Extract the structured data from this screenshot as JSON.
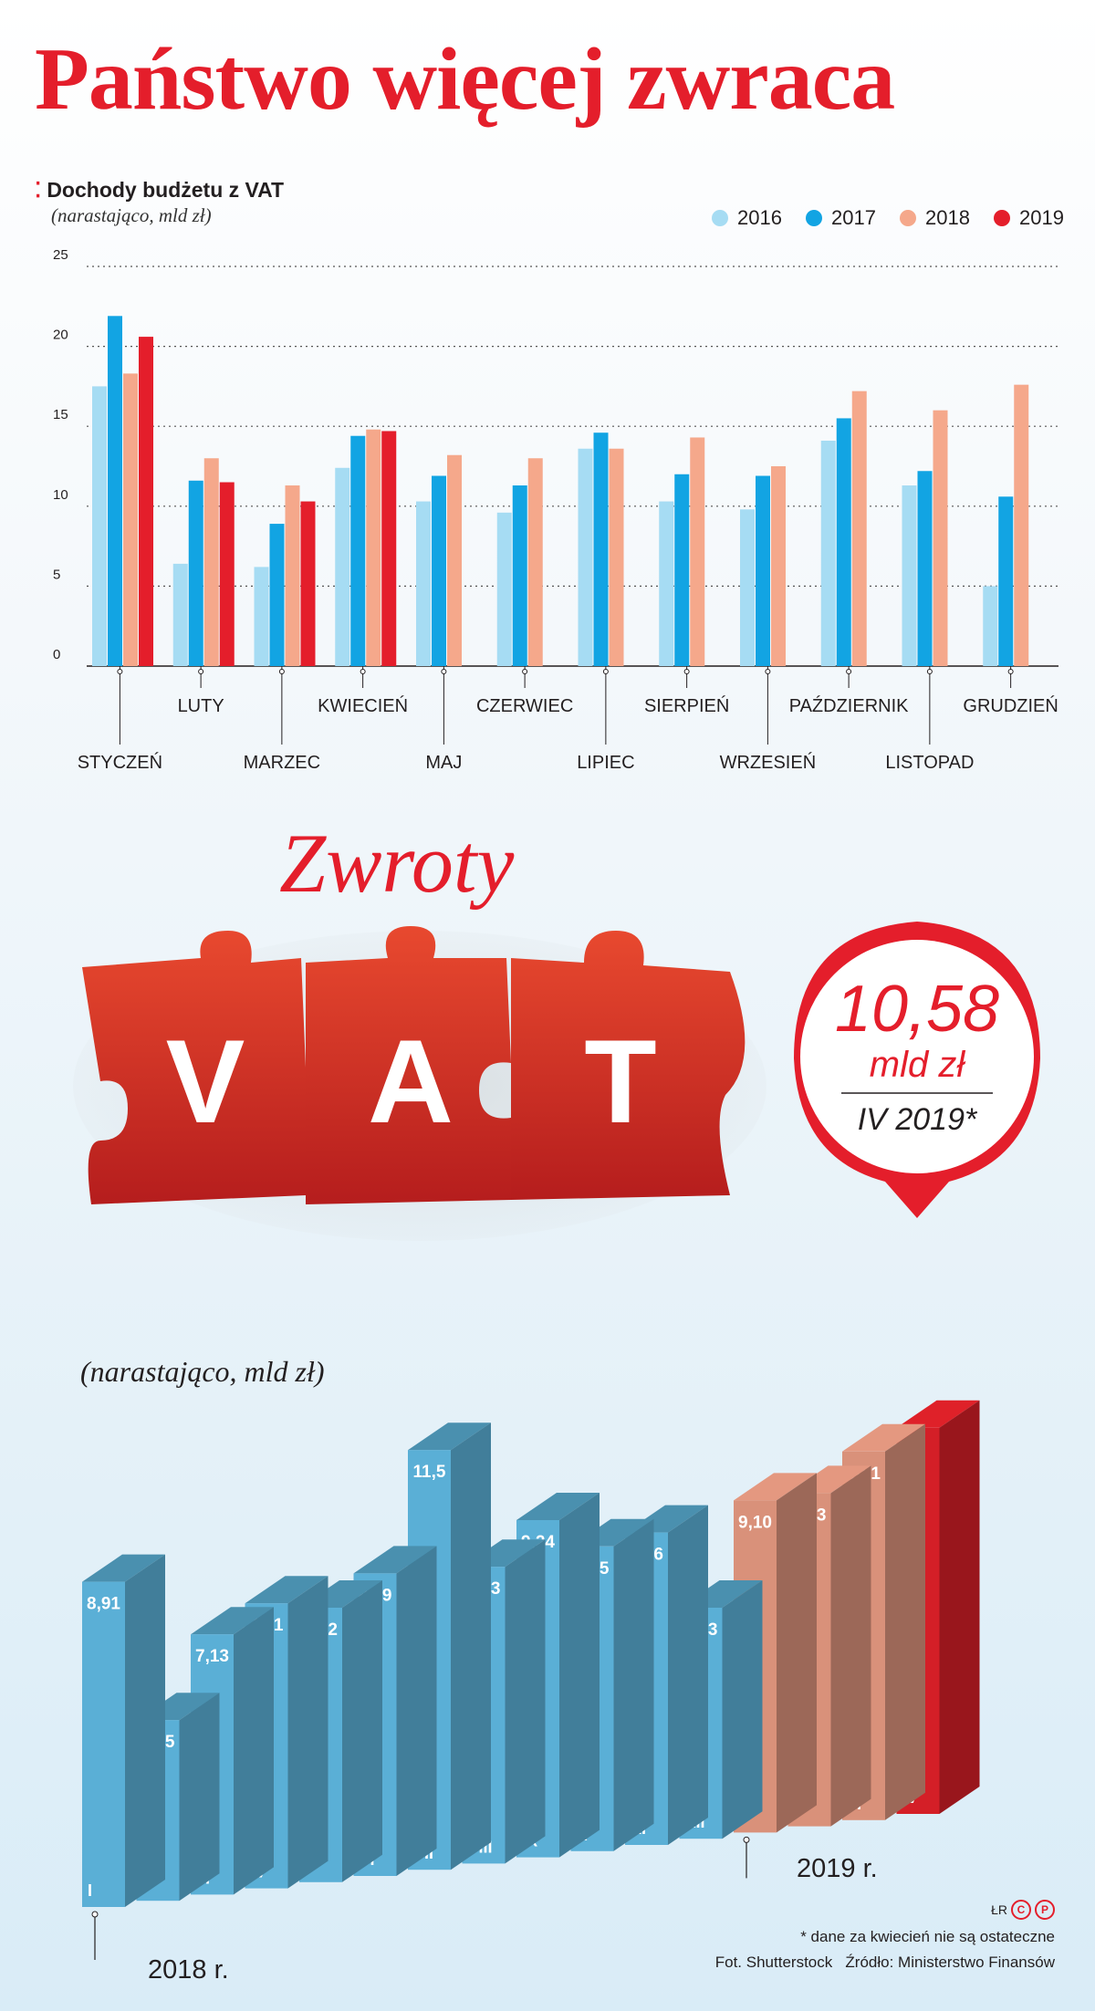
{
  "title": "Państwo więcej zwraca",
  "chart_data": [
    {
      "type": "bar",
      "title": "Dochody budżetu z VAT",
      "ylabel": "(narastająco, mld zł)",
      "ylim": [
        0,
        25
      ],
      "yticks": [
        0,
        5,
        10,
        15,
        20,
        25
      ],
      "grid": true,
      "legend_position": "top-right",
      "categories": [
        "STYCZEŃ",
        "LUTY",
        "MARZEC",
        "KWIECIEŃ",
        "MAJ",
        "CZERWIEC",
        "LIPIEC",
        "SIERPIEŃ",
        "WRZESIEŃ",
        "PAŹDZIERNIK",
        "LISTOPAD",
        "GRUDZIEŃ"
      ],
      "series": [
        {
          "name": "2016",
          "color": "#a6dcf3",
          "values": [
            17.5,
            6.4,
            6.2,
            12.4,
            10.3,
            9.6,
            13.6,
            10.3,
            9.8,
            14.1,
            11.3,
            5.0
          ]
        },
        {
          "name": "2017",
          "color": "#12a4e3",
          "values": [
            21.9,
            11.6,
            8.9,
            14.4,
            11.9,
            11.3,
            14.6,
            12.0,
            11.9,
            15.5,
            12.2,
            10.6
          ]
        },
        {
          "name": "2018",
          "color": "#f5a88b",
          "values": [
            18.3,
            13.0,
            11.3,
            14.8,
            13.2,
            13.0,
            13.6,
            14.3,
            12.5,
            17.2,
            16.0,
            17.6
          ]
        },
        {
          "name": "2019",
          "color": "#e41e2b",
          "values": [
            20.6,
            11.5,
            10.3,
            14.7,
            null,
            null,
            null,
            null,
            null,
            null,
            null,
            null
          ]
        }
      ]
    },
    {
      "type": "bar",
      "title": "Zwroty VAT",
      "ylabel": "(narastająco, mld zł)",
      "categories": [
        "I",
        "II",
        "III",
        "IV",
        "V",
        "VI",
        "VII",
        "VIII",
        "IX",
        "X",
        "XI",
        "XII",
        "I",
        "II",
        "III",
        "IV"
      ],
      "values": [
        8.91,
        4.95,
        7.13,
        7.81,
        7.52,
        8.29,
        11.5,
        8.13,
        9.24,
        8.35,
        8.56,
        6.33,
        9.1,
        9.13,
        10.1,
        10.58
      ],
      "labels": [
        "8,91",
        "4,95",
        "7,13",
        "7,81",
        "7,52",
        "8,29",
        "11,5",
        "8,13",
        "9,24",
        "8,35",
        "8,56",
        "6,33",
        "9,10",
        "9,13",
        "10,1",
        ""
      ],
      "groups": [
        {
          "year": "2018 r.",
          "color": "#5aafd6"
        },
        {
          "year": "2019 r.",
          "color": "#d9917a"
        }
      ]
    }
  ],
  "vat_banner": {
    "heading": "Zwroty",
    "letters": [
      "V",
      "A",
      "T"
    ]
  },
  "highlight": {
    "value": "10,58",
    "unit": "mld zł",
    "period": "IV 2019*"
  },
  "colors": {
    "accent": "#e41e2b",
    "blue_bar": "#5aafd6",
    "salmon_bar": "#d9917a"
  },
  "footer": {
    "author": "ŁR",
    "footnote": "* dane za kwiecień nie są ostateczne",
    "credit": "Fot. Shutterstock",
    "source": "Źródło: Ministerstwo Finansów"
  }
}
